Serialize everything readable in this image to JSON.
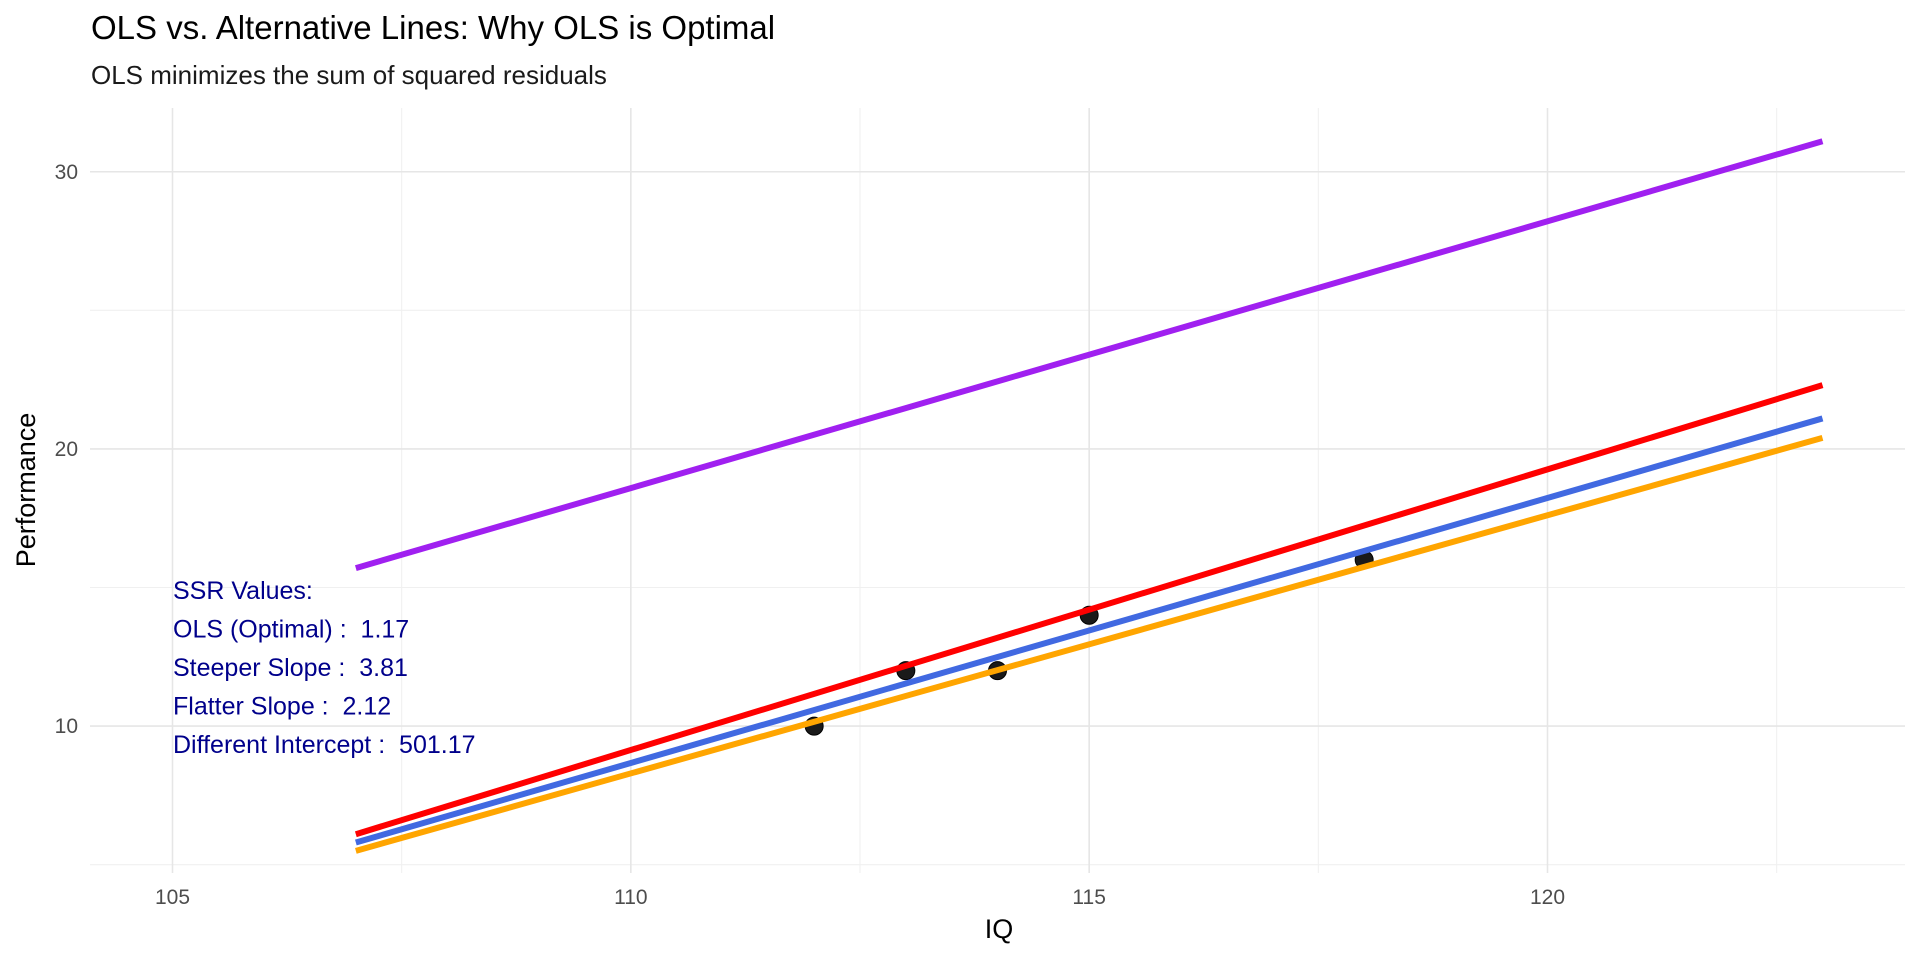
{
  "chart_data": {
    "type": "scatter",
    "title": "OLS vs. Alternative Lines: Why OLS is Optimal",
    "subtitle": "OLS minimizes the sum of squared residuals",
    "xlabel": "IQ",
    "ylabel": "Performance",
    "xlim": [
      104.1,
      123.9
    ],
    "ylim": [
      4.7,
      32.3
    ],
    "x_ticks": [
      105,
      110,
      115,
      120
    ],
    "y_ticks": [
      10,
      20,
      30
    ],
    "grid": true,
    "points": [
      {
        "x": 112,
        "y": 10
      },
      {
        "x": 113,
        "y": 12
      },
      {
        "x": 114,
        "y": 12
      },
      {
        "x": 115,
        "y": 14
      },
      {
        "x": 118,
        "y": 16
      }
    ],
    "lines": [
      {
        "color": "#a020f0",
        "x": [
          107,
          123
        ],
        "y": [
          15.7,
          31.1
        ]
      },
      {
        "color": "#ff0000",
        "x": [
          107,
          123
        ],
        "y": [
          6.1,
          22.3
        ]
      },
      {
        "color": "#4169e1",
        "x": [
          107,
          123
        ],
        "y": [
          5.8,
          21.1
        ]
      },
      {
        "color": "#ffa500",
        "x": [
          107,
          123
        ],
        "y": [
          5.5,
          20.4
        ]
      }
    ],
    "annotation": {
      "heading": "SSR Values:",
      "lines": [
        "OLS (Optimal) :  1.17",
        "Steeper Slope :  3.81",
        "Flatter Slope :  2.12",
        "Different Intercept :  501.17"
      ]
    }
  }
}
